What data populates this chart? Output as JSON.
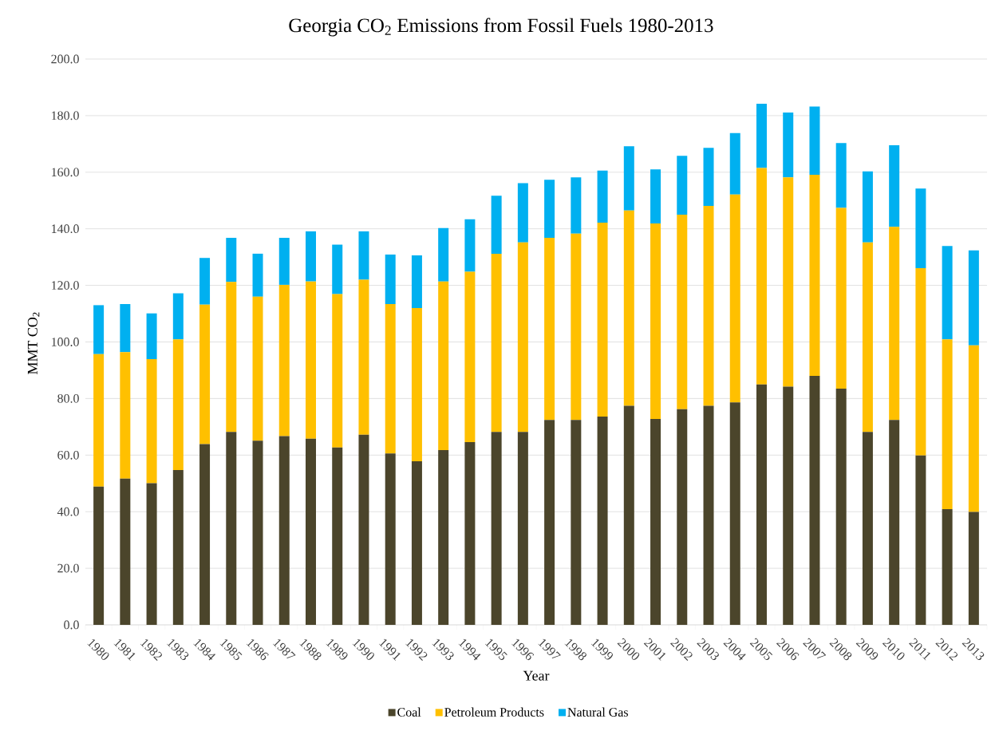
{
  "chart_data": {
    "type": "bar",
    "title": "Georgia CO$_{2}$ Emissions from Fossil Fuels 1980-2013",
    "xlabel": "Year",
    "ylabel": "MMT CO$_{2}$",
    "categories": [
      "1980",
      "1981",
      "1982",
      "1983",
      "1984",
      "1985",
      "1986",
      "1987",
      "1988",
      "1989",
      "1990",
      "1991",
      "1992",
      "1993",
      "1994",
      "1995",
      "1996",
      "1997",
      "1998",
      "1999",
      "2000",
      "2001",
      "2002",
      "2003",
      "2004",
      "2005",
      "2006",
      "2007",
      "2008",
      "2009",
      "2010",
      "2011",
      "2012",
      "2013"
    ],
    "series": [
      {
        "name": "Coal",
        "color": "#4b452b",
        "values": [
          48.9,
          51.7,
          50.1,
          54.7,
          63.9,
          68.2,
          65.1,
          66.7,
          65.8,
          62.7,
          67.2,
          60.6,
          57.8,
          61.8,
          64.6,
          68.2,
          68.2,
          72.4,
          72.4,
          73.6,
          77.4,
          72.8,
          76.2,
          77.4,
          78.6,
          85.0,
          84.2,
          88.0,
          83.5,
          68.2,
          72.4,
          59.9,
          40.9,
          39.9
        ]
      },
      {
        "name": "Petroleum Products",
        "color": "#ffc000",
        "values": [
          46.8,
          44.7,
          43.8,
          46.2,
          49.3,
          53.0,
          50.9,
          53.5,
          55.6,
          54.2,
          54.8,
          52.8,
          54.2,
          59.6,
          60.2,
          63.0,
          67.0,
          64.4,
          65.9,
          68.6,
          69.1,
          69.1,
          68.8,
          70.7,
          73.5,
          76.5,
          74.0,
          71.1,
          63.9,
          67.0,
          68.3,
          66.2,
          60.0,
          58.9
        ]
      },
      {
        "name": "Natural Gas",
        "color": "#00b0f0",
        "values": [
          17.3,
          17.0,
          16.2,
          16.3,
          16.5,
          15.6,
          15.2,
          16.6,
          17.7,
          17.5,
          17.1,
          17.5,
          18.6,
          18.9,
          18.6,
          20.5,
          20.9,
          20.5,
          19.9,
          18.4,
          22.7,
          19.1,
          20.8,
          20.5,
          21.7,
          22.7,
          22.9,
          24.1,
          22.9,
          25.1,
          28.8,
          28.1,
          33.0,
          33.6
        ]
      }
    ],
    "stacked": true,
    "ylim": [
      0,
      200
    ],
    "yticks": [
      {
        "value": 0,
        "label": "0.0"
      },
      {
        "value": 20,
        "label": "20.0"
      },
      {
        "value": 40,
        "label": "40.0"
      },
      {
        "value": 60,
        "label": "60.0"
      },
      {
        "value": 80,
        "label": "80.0"
      },
      {
        "value": 100,
        "label": "100.0"
      },
      {
        "value": 120,
        "label": "120.0"
      },
      {
        "value": 140,
        "label": "140.0"
      },
      {
        "value": 160,
        "label": "160.0"
      },
      {
        "value": 180,
        "label": "180.0"
      },
      {
        "value": 200,
        "label": "200.0"
      }
    ],
    "grid": "y",
    "legend": "bottom"
  }
}
